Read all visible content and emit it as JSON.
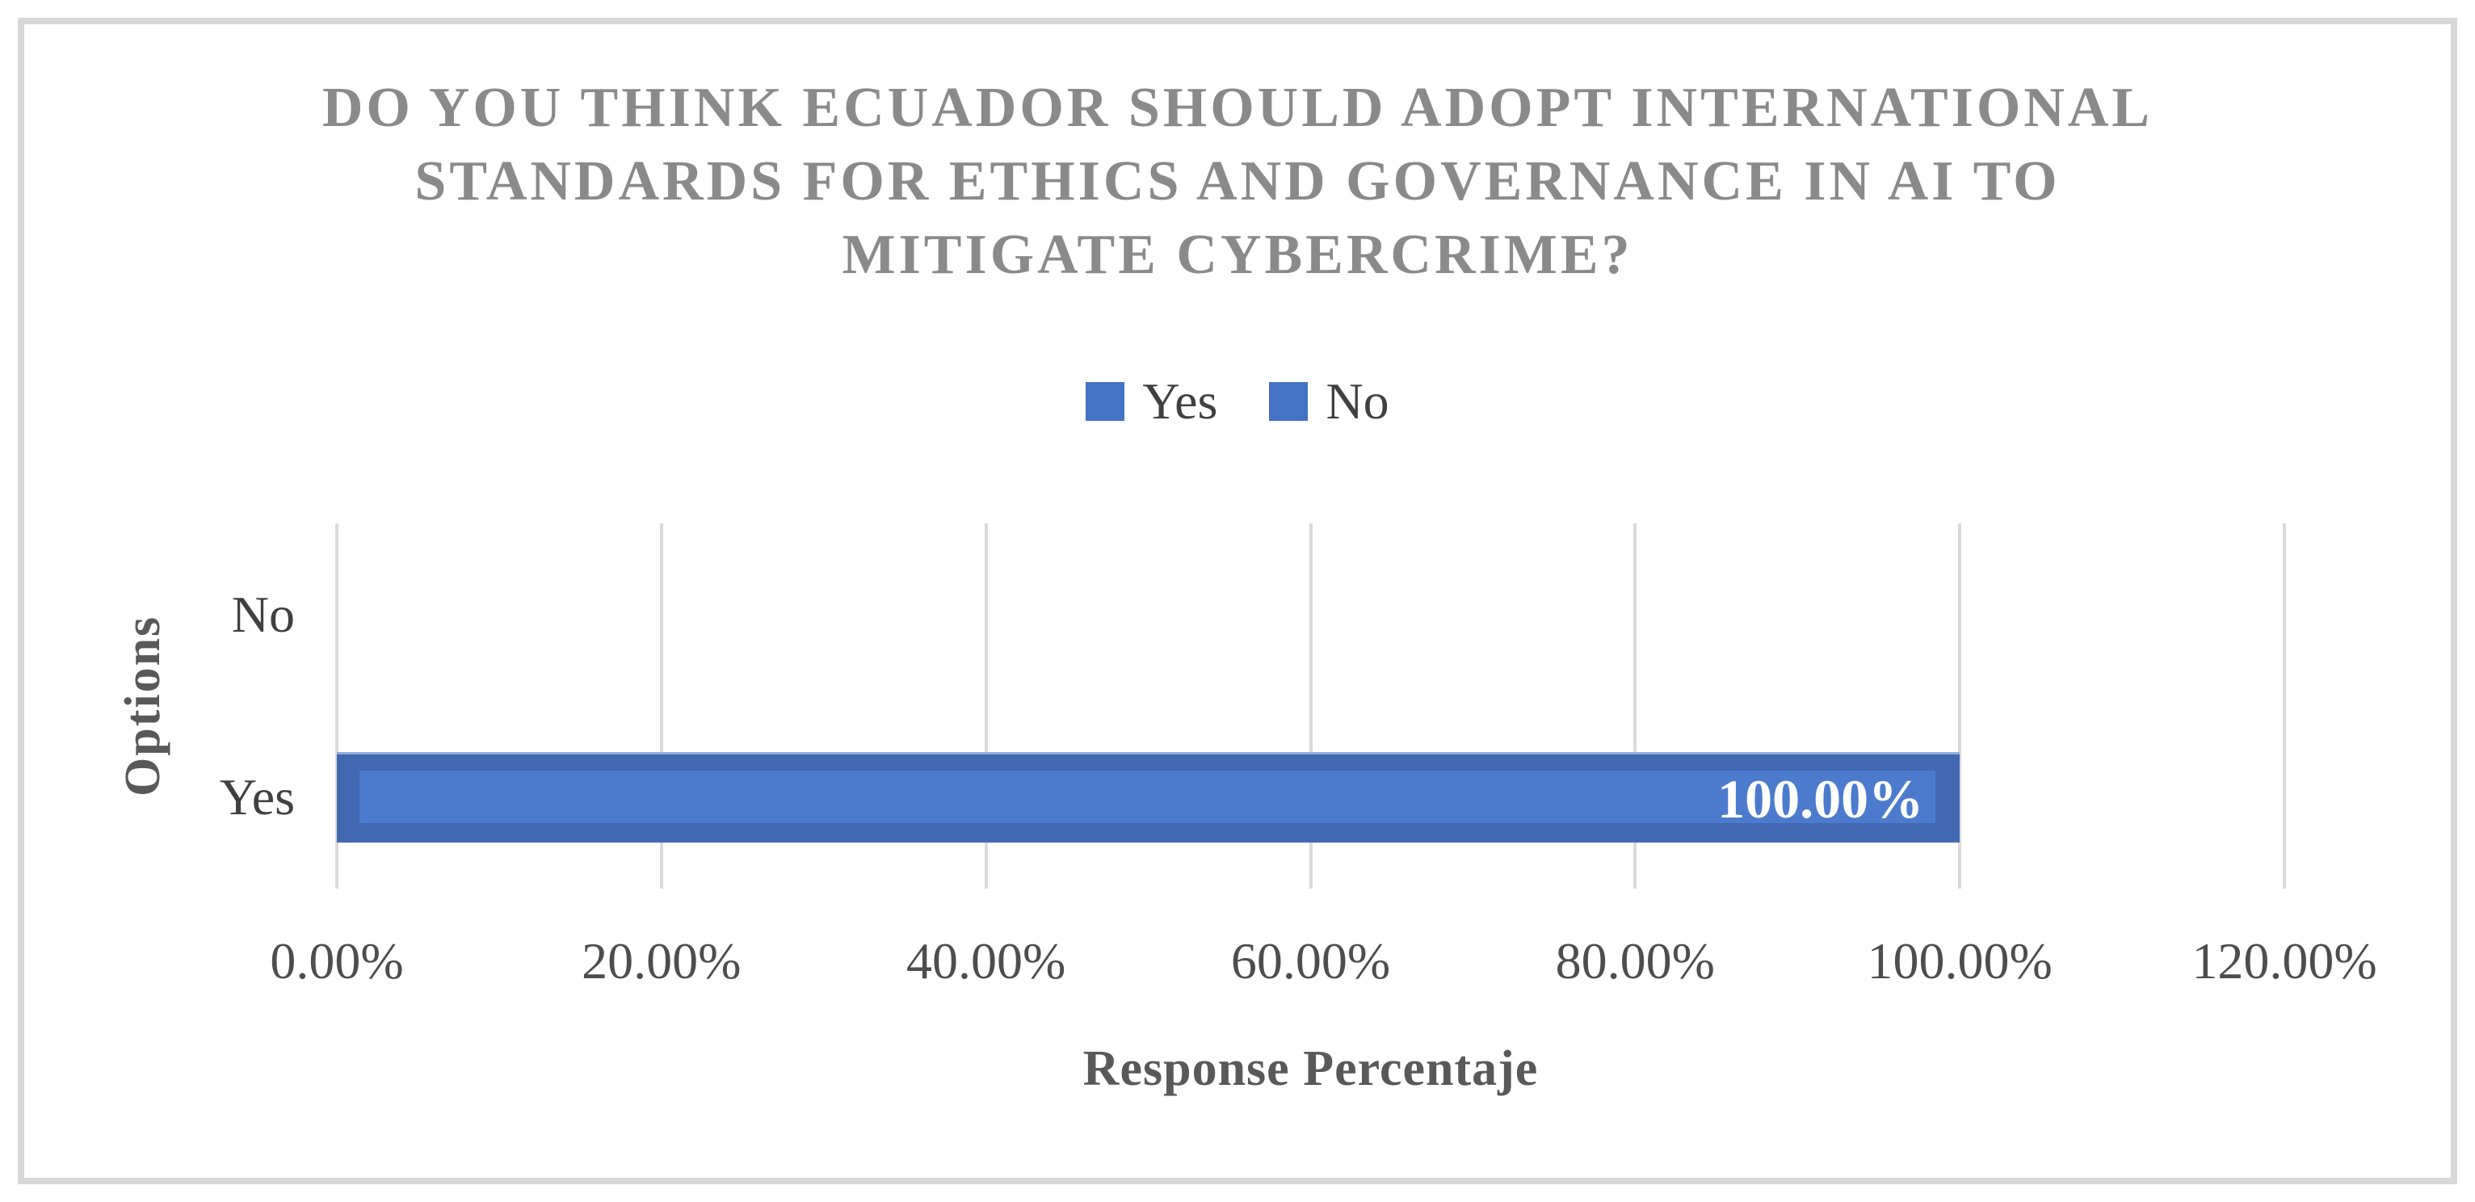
{
  "colors": {
    "background": "#FFFFFF",
    "frame_border": "#D8D8D8",
    "accent_blue": "#4472C4",
    "bar_fill": "#4168B1",
    "bar_fill_inner": "#4C7BCE",
    "bar_top_highlight": "#93ABDB",
    "gridline": "#D9D9D9",
    "title_text": "#8A8A8A",
    "axis_title_text": "#595959",
    "tick_text": "#4D4D4D",
    "category_text": "#404040",
    "data_label_text": "#FFFFFF"
  },
  "chart_data": {
    "type": "bar",
    "orientation": "horizontal",
    "title": "DO YOU THINK ECUADOR SHOULD ADOPT INTERNATIONAL STANDARDS FOR ETHICS AND GOVERNANCE IN AI TO MITIGATE CYBERCRIME?",
    "title_lines": [
      "DO YOU THINK ECUADOR SHOULD ADOPT INTERNATIONAL",
      "STANDARDS FOR ETHICS AND GOVERNANCE IN AI TO",
      "MITIGATE CYBERCRIME?"
    ],
    "legend": [
      "Yes",
      "No"
    ],
    "legend_position": "top",
    "categories": [
      "Yes",
      "No"
    ],
    "values": [
      100.0,
      0.0
    ],
    "data_labels": [
      "100.00%",
      ""
    ],
    "xlabel": "Response Percentaje",
    "ylabel": "Options",
    "xlim": [
      0,
      120
    ],
    "xtick_labels": [
      "0.00%",
      "20.00%",
      "40.00%",
      "60.00%",
      "80.00%",
      "100.00%",
      "120.00%"
    ],
    "xtick_values": [
      0,
      20,
      40,
      60,
      80,
      100,
      120
    ],
    "grid": true
  }
}
